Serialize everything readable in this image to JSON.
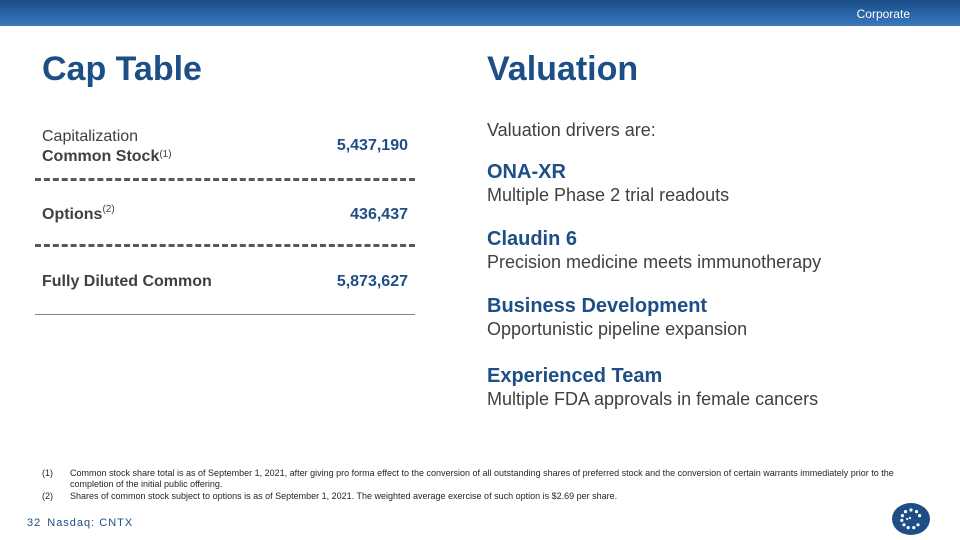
{
  "header": {
    "section_label": "Corporate"
  },
  "cap_table": {
    "title": "Cap Table",
    "rows": [
      {
        "label_line1": "Capitalization",
        "label_line2": "Common Stock",
        "sup": "(1)",
        "value": "5,437,190"
      },
      {
        "label": "Options",
        "sup": "(2)",
        "value": "436,437"
      },
      {
        "label": "Fully Diluted Common",
        "value": "5,873,627"
      }
    ]
  },
  "valuation": {
    "title": "Valuation",
    "intro": "Valuation drivers are:",
    "drivers": [
      {
        "heading": "ONA-XR",
        "text": "Multiple Phase 2 trial readouts"
      },
      {
        "heading": "Claudin 6",
        "text": "Precision medicine meets immunotherapy"
      },
      {
        "heading": "Business Development",
        "text": "Opportunistic pipeline expansion"
      },
      {
        "heading": "Experienced Team",
        "text": "Multiple FDA approvals in female cancers"
      }
    ]
  },
  "footnotes": [
    {
      "num": "(1)",
      "text": "Common stock share total is as of September 1, 2021, after giving pro forma effect to the conversion of all outstanding shares of preferred stock and the conversion of certain warrants immediately prior to the completion of the initial public offering."
    },
    {
      "num": "(2)",
      "text": "Shares of common stock subject to options is as of September 1, 2021. The weighted average exercise of such option is $2.69 per share."
    }
  ],
  "footer": {
    "page_number": "32",
    "ticker": "Nasdaq: CNTX"
  },
  "colors": {
    "brand_blue": "#1e4e86",
    "body_text": "#404040"
  },
  "icons": {
    "logo": "company-logo-icon"
  }
}
